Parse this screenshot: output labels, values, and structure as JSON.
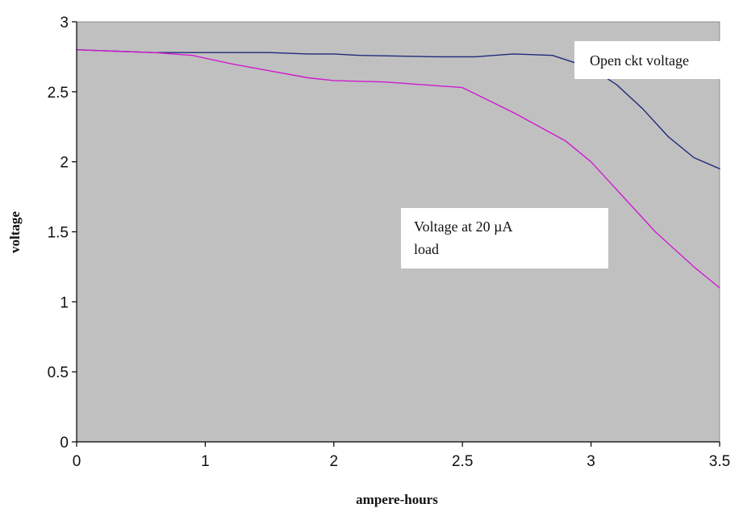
{
  "chart_data": {
    "type": "line",
    "title": "",
    "xlabel": "ampere-hours",
    "ylabel": "voltage",
    "x_ticks": [
      0,
      1,
      2,
      2.5,
      3,
      3.5
    ],
    "x_tick_labels": [
      "0",
      "1",
      "2",
      "2.5",
      "3",
      "3.5"
    ],
    "y_ticks": [
      0,
      0.5,
      1,
      1.5,
      2,
      2.5,
      3
    ],
    "y_tick_labels": [
      "0",
      "0.5",
      "1",
      "1.5",
      "2",
      "2.5",
      "3"
    ],
    "ylim": [
      0,
      3
    ],
    "x_axis_note": "category-style axis: ticks evenly spaced",
    "grid": false,
    "plot_background": "#c0c0c0",
    "series": [
      {
        "name": "Open ckt voltage",
        "color": "#1f2a7a",
        "points": [
          [
            0,
            2.8
          ],
          [
            0.3,
            2.79
          ],
          [
            0.6,
            2.78
          ],
          [
            0.9,
            2.78
          ],
          [
            1.2,
            2.78
          ],
          [
            1.5,
            2.78
          ],
          [
            1.8,
            2.77
          ],
          [
            2.0,
            2.77
          ],
          [
            2.1,
            2.76
          ],
          [
            2.4,
            2.75
          ],
          [
            2.55,
            2.75
          ],
          [
            2.7,
            2.77
          ],
          [
            2.85,
            2.76
          ],
          [
            3.0,
            2.67
          ],
          [
            3.1,
            2.55
          ],
          [
            3.2,
            2.38
          ],
          [
            3.3,
            2.18
          ],
          [
            3.4,
            2.03
          ],
          [
            3.5,
            1.95
          ]
        ]
      },
      {
        "name": "Voltage at 20 µA load",
        "label_lines": [
          "Voltage at 20 µA",
          "load"
        ],
        "color": "#d01ad0",
        "points": [
          [
            0,
            2.8
          ],
          [
            0.3,
            2.79
          ],
          [
            0.6,
            2.78
          ],
          [
            0.9,
            2.76
          ],
          [
            1.2,
            2.7
          ],
          [
            1.5,
            2.65
          ],
          [
            1.8,
            2.6
          ],
          [
            2.0,
            2.58
          ],
          [
            2.2,
            2.57
          ],
          [
            2.5,
            2.53
          ],
          [
            2.7,
            2.35
          ],
          [
            2.9,
            2.15
          ],
          [
            3.0,
            2.0
          ],
          [
            3.1,
            1.8
          ],
          [
            3.25,
            1.5
          ],
          [
            3.4,
            1.25
          ],
          [
            3.5,
            1.1
          ]
        ]
      }
    ]
  }
}
